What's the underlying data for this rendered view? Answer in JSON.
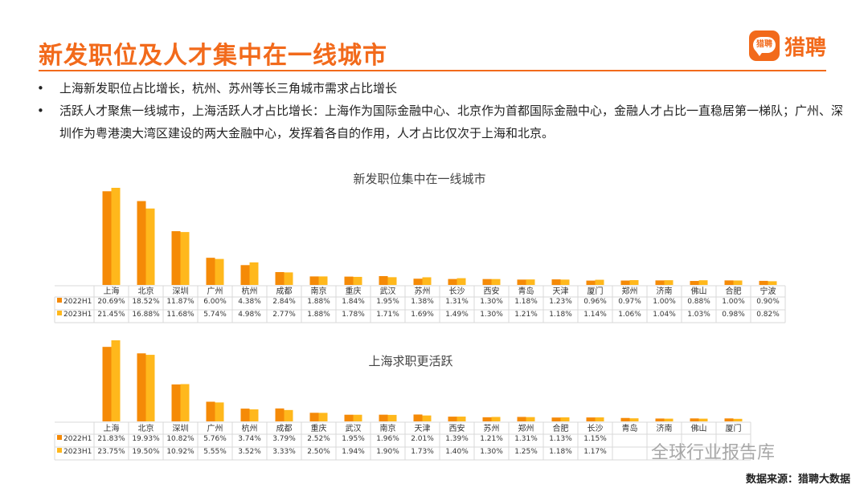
{
  "page": {
    "title": "新发职位及人才集中在一线城市",
    "logo_badge": "猎聘",
    "logo_text": "猎聘",
    "bullets": [
      "上海新发职位占比增长，杭州、苏州等长三角城市需求占比增长",
      "活跃人才聚焦一线城市，上海活跃人才占比增长：上海作为国际金融中心、北京作为首都国际金融中心，金融人才占比一直稳居第一梯队；广州、深圳作为粤港澳大湾区建设的两大金融中心，发挥着各自的作用，人才占比仅次于上海和北京。"
    ],
    "source": "数据来源：猎聘大数据",
    "watermark": "全球行业报告库"
  },
  "colors": {
    "s2022": "#f58a07",
    "s2023": "#ffb81c",
    "accent": "#f26a1b"
  },
  "chart_data": [
    {
      "type": "bar",
      "title": "新发职位集中在一线城市",
      "categories": [
        "上海",
        "北京",
        "深圳",
        "广州",
        "杭州",
        "成都",
        "南京",
        "重庆",
        "武汉",
        "苏州",
        "长沙",
        "西安",
        "青岛",
        "天津",
        "厦门",
        "郑州",
        "济南",
        "佛山",
        "合肥",
        "宁波"
      ],
      "series": [
        {
          "name": "2022H1",
          "values": [
            20.69,
            18.52,
            11.87,
            6.0,
            4.38,
            2.84,
            1.88,
            1.84,
            1.95,
            1.38,
            1.31,
            1.3,
            1.18,
            1.23,
            0.96,
            0.97,
            1.0,
            0.88,
            1.0,
            0.9
          ],
          "labels": [
            "20.69%",
            "18.52%",
            "11.87%",
            "6.00%",
            "4.38%",
            "2.84%",
            "1.88%",
            "1.84%",
            "1.95%",
            "1.38%",
            "1.31%",
            "1.30%",
            "1.18%",
            "1.23%",
            "0.96%",
            "0.97%",
            "1.00%",
            "0.88%",
            "1.00%",
            "0.90%"
          ]
        },
        {
          "name": "2023H1",
          "values": [
            21.45,
            16.88,
            11.68,
            5.74,
            4.98,
            2.77,
            1.88,
            1.78,
            1.71,
            1.69,
            1.49,
            1.3,
            1.21,
            1.18,
            1.14,
            1.06,
            1.04,
            1.03,
            0.98,
            0.82
          ],
          "labels": [
            "21.45%",
            "16.88%",
            "11.68%",
            "5.74%",
            "4.98%",
            "2.77%",
            "1.88%",
            "1.78%",
            "1.71%",
            "1.69%",
            "1.49%",
            "1.30%",
            "1.21%",
            "1.18%",
            "1.14%",
            "1.06%",
            "1.04%",
            "1.03%",
            "0.98%",
            "0.82%"
          ]
        }
      ]
    },
    {
      "type": "bar",
      "title": "上海求职更活跃",
      "categories": [
        "上海",
        "北京",
        "深圳",
        "广州",
        "杭州",
        "成都",
        "重庆",
        "武汉",
        "南京",
        "天津",
        "西安",
        "苏州",
        "郑州",
        "合肥",
        "长沙",
        "青岛",
        "济南",
        "佛山",
        "厦门"
      ],
      "series": [
        {
          "name": "2022H1",
          "values": [
            21.83,
            19.93,
            10.82,
            5.76,
            3.74,
            3.79,
            2.52,
            1.95,
            1.96,
            2.01,
            1.39,
            1.21,
            1.31,
            1.13,
            1.15,
            1.0,
            0.84,
            0.87,
            0.87
          ],
          "labels": [
            "21.83%",
            "19.93%",
            "10.82%",
            "5.76%",
            "3.74%",
            "3.79%",
            "2.52%",
            "1.95%",
            "1.96%",
            "2.01%",
            "1.39%",
            "1.21%",
            "1.31%",
            "1.13%",
            "1.15%",
            "",
            "",
            "",
            ""
          ]
        },
        {
          "name": "2023H1",
          "values": [
            23.75,
            19.5,
            10.92,
            5.55,
            3.52,
            3.33,
            2.5,
            1.94,
            1.9,
            1.73,
            1.4,
            1.3,
            1.25,
            1.18,
            1.17,
            0.9,
            0.8,
            0.8,
            0.75
          ],
          "labels": [
            "23.75%",
            "19.50%",
            "10.92%",
            "5.55%",
            "3.52%",
            "3.33%",
            "2.50%",
            "1.94%",
            "1.90%",
            "1.73%",
            "1.40%",
            "1.30%",
            "1.25%",
            "1.18%",
            "1.17%",
            "",
            "",
            "",
            ""
          ]
        }
      ]
    }
  ]
}
